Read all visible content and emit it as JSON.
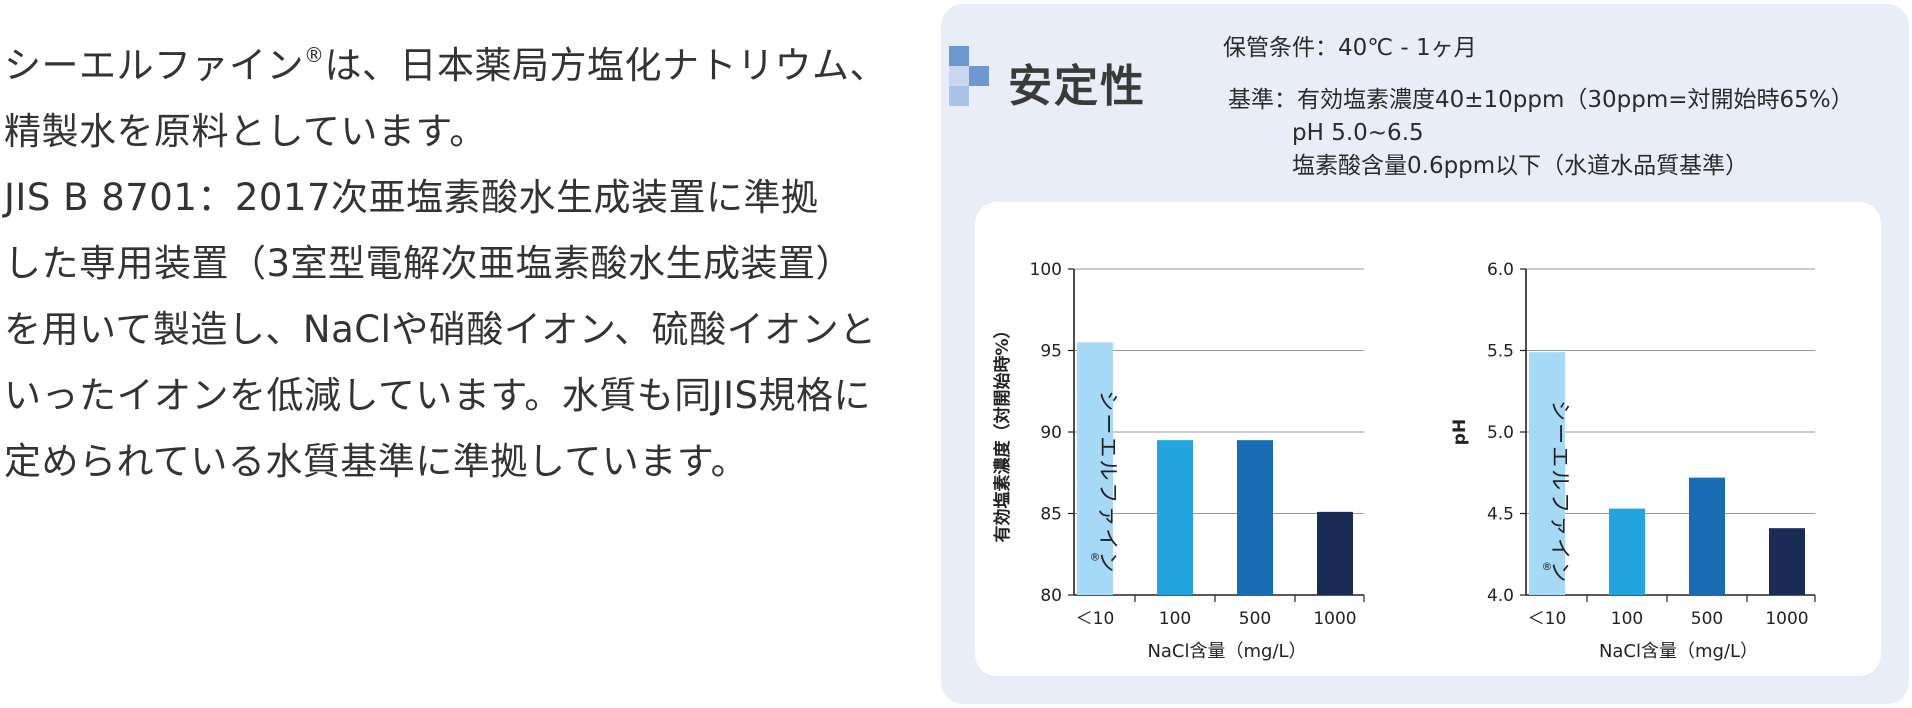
{
  "intro": {
    "lines": [
      "シーエルファイン",
      "は、日本薬局方塩化ナトリウム、",
      "精製水を原料としています。",
      "JIS B 8701：2017次亜塩素酸水生成装置に準拠",
      "した専用装置（3室型電解次亜塩素酸水生成装置）",
      "を用いて製造し、NaClや硝酸イオン、硫酸イオンと",
      "いったイオンを低減しています。水質も同JIS規格に",
      "定められている水質基準に準拠しています。"
    ],
    "reg_mark": "®"
  },
  "panel": {
    "title": "安定性",
    "storage": "保管条件：40℃ - 1ヶ月",
    "criteria_label": "基準：",
    "criteria": [
      "有効塩素濃度40±10ppm（30ppm=対開始時65%）",
      "pH 5.0~6.5",
      "塩素酸含量0.6ppm以下（水道水品質基準）"
    ],
    "colors": {
      "panel_bg": "#e9edf7",
      "logo_dark": "#6f97d2",
      "logo_light": "#a9c3e6"
    }
  },
  "chart_data": [
    {
      "type": "bar",
      "categories": [
        "＜10",
        "100",
        "500",
        "1000"
      ],
      "values": [
        95.5,
        89.5,
        89.5,
        85.1
      ],
      "ylabel": "有効塩素濃度（対開始時%）",
      "xlabel": "NaCl含量（mg/L）",
      "ylim": [
        80,
        100
      ],
      "yticks": [
        80,
        85,
        90,
        95,
        100
      ],
      "grid": true,
      "bar_label": "シーエルファイン",
      "bar_label_reg": "®",
      "colors": [
        "#a6d9f5",
        "#22a5df",
        "#1a6db4",
        "#1a2c56"
      ]
    },
    {
      "type": "bar",
      "categories": [
        "＜10",
        "100",
        "500",
        "1000"
      ],
      "values": [
        5.49,
        4.53,
        4.72,
        4.41
      ],
      "ylabel": "pH",
      "xlabel": "NaCl含量（mg/L）",
      "ylim": [
        4.0,
        6.0
      ],
      "yticks": [
        "4.0",
        "4.5",
        "5.0",
        "5.5",
        "6.0"
      ],
      "grid": true,
      "bar_label": "シーエルファイン",
      "bar_label_reg": "®",
      "colors": [
        "#a6d9f5",
        "#22a5df",
        "#1a6db4",
        "#1a2c56"
      ]
    }
  ]
}
